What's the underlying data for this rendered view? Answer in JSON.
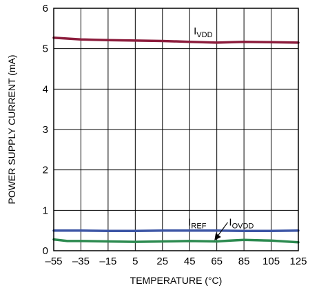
{
  "chart_data": {
    "type": "line",
    "xlabel": "TEMPERATURE (°C)",
    "ylabel": "POWER SUPPLY CURRENT (mA)",
    "xlim": [
      -55,
      125
    ],
    "ylim": [
      0,
      6
    ],
    "x_ticks": [
      -55,
      -35,
      -15,
      5,
      25,
      45,
      65,
      85,
      105,
      125
    ],
    "y_ticks": [
      0,
      1,
      2,
      3,
      4,
      5,
      6
    ],
    "x_tick_labels": [
      "–55",
      "–35",
      "–15",
      "5",
      "25",
      "45",
      "65",
      "85",
      "105",
      "125"
    ],
    "y_tick_labels": [
      "0",
      "1",
      "2",
      "3",
      "4",
      "5",
      "6"
    ],
    "grid": true,
    "series": [
      {
        "name": "VDD",
        "label_main": "I",
        "label_sub": "VDD",
        "color": "#8c1c3c",
        "x": [
          -55,
          -35,
          -15,
          5,
          25,
          45,
          65,
          85,
          105,
          125
        ],
        "y": [
          5.27,
          5.23,
          5.21,
          5.2,
          5.19,
          5.17,
          5.15,
          5.17,
          5.16,
          5.15
        ]
      },
      {
        "name": "REF",
        "label_main": "I",
        "label_sub": "REF",
        "color": "#3c55a5",
        "x": [
          -55,
          -35,
          -15,
          5,
          25,
          45,
          65,
          85,
          105,
          125
        ],
        "y": [
          0.5,
          0.5,
          0.49,
          0.49,
          0.5,
          0.5,
          0.5,
          0.49,
          0.49,
          0.5
        ]
      },
      {
        "name": "OVDD",
        "label_main": "I",
        "label_sub": "OVDD",
        "color": "#2b8a4f",
        "x": [
          -55,
          -45,
          -35,
          -15,
          5,
          25,
          45,
          65,
          75,
          85,
          105,
          125
        ],
        "y": [
          0.28,
          0.24,
          0.24,
          0.23,
          0.22,
          0.23,
          0.24,
          0.23,
          0.25,
          0.27,
          0.25,
          0.21
        ]
      }
    ]
  }
}
